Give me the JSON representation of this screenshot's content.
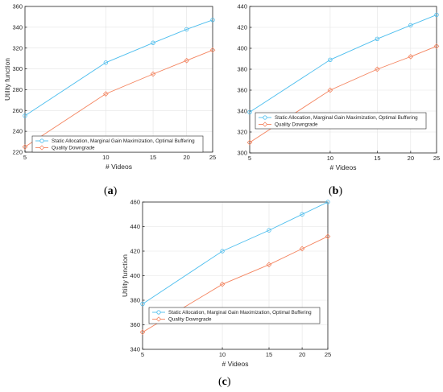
{
  "chart_data": [
    {
      "type": "line",
      "panel": "a",
      "caption": "a",
      "xlabel": "# Videos",
      "ylabel": "Utility function",
      "x": [
        5,
        10,
        15,
        20,
        25
      ],
      "xlim": [
        5,
        25
      ],
      "ylim": [
        220,
        360
      ],
      "x_ticks": [
        5,
        10,
        15,
        20,
        25
      ],
      "y_ticks": [
        220,
        240,
        260,
        280,
        300,
        320,
        340,
        360
      ],
      "x_scale": "log",
      "grid": true,
      "legend_position": "bottom-right",
      "series": [
        {
          "name": "Static Allocation, Marginal Gain Maximization, Optimal Buffering",
          "color": "#4dbeee",
          "marker": "circle",
          "values": [
            255,
            306,
            325,
            338,
            347
          ]
        },
        {
          "name": "Quality Downgrade",
          "color": "#f4845f",
          "marker": "diamond",
          "values": [
            225,
            276,
            295,
            308,
            318
          ]
        }
      ]
    },
    {
      "type": "line",
      "panel": "b",
      "caption": "b",
      "xlabel": "# Videos",
      "ylabel": "",
      "x": [
        5,
        10,
        15,
        20,
        25
      ],
      "xlim": [
        5,
        25
      ],
      "ylim": [
        300,
        440
      ],
      "x_ticks": [
        5,
        10,
        15,
        20,
        25
      ],
      "y_ticks": [
        300,
        320,
        340,
        360,
        380,
        400,
        420,
        440
      ],
      "x_scale": "log",
      "grid": true,
      "legend_position": "bottom-right",
      "series": [
        {
          "name": "Static Allocation, Marginal Gain Maximization, Optimal Buffering",
          "color": "#4dbeee",
          "marker": "circle",
          "values": [
            339,
            389,
            409,
            422,
            432
          ]
        },
        {
          "name": "Quality Downgrade",
          "color": "#f4845f",
          "marker": "diamond",
          "values": [
            310,
            360,
            380,
            392,
            402
          ]
        }
      ]
    },
    {
      "type": "line",
      "panel": "c",
      "caption": "c",
      "xlabel": "# Videos",
      "ylabel": "Utility function",
      "x": [
        5,
        10,
        15,
        20,
        25
      ],
      "xlim": [
        5,
        25
      ],
      "ylim": [
        340,
        460
      ],
      "x_ticks": [
        5,
        10,
        15,
        20,
        25
      ],
      "y_ticks": [
        340,
        360,
        380,
        400,
        420,
        440,
        460
      ],
      "x_scale": "log",
      "grid": true,
      "legend_position": "bottom-right",
      "series": [
        {
          "name": "Static Allocation, Marginal Gain Maximization, Optimal Buffering",
          "color": "#4dbeee",
          "marker": "circle",
          "values": [
            377,
            420,
            437,
            450,
            460
          ]
        },
        {
          "name": "Quality Downgrade",
          "color": "#f4845f",
          "marker": "diamond",
          "values": [
            354,
            393,
            409,
            422,
            432
          ]
        }
      ]
    }
  ]
}
